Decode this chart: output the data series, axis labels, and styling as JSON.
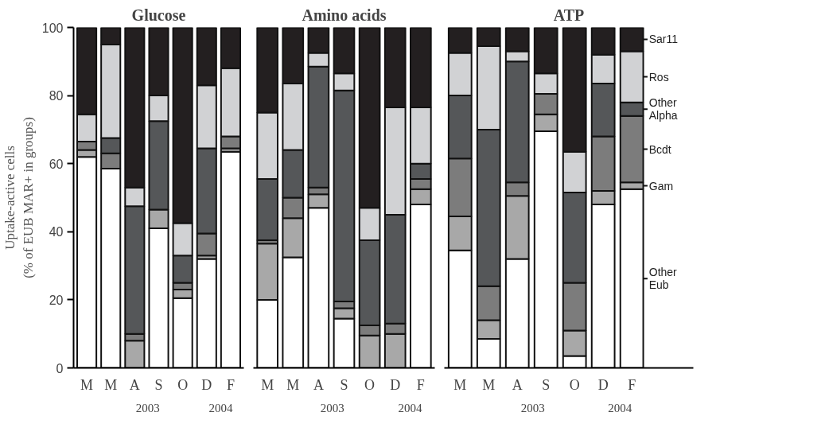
{
  "chart_data": [
    {
      "type": "bar",
      "stacked": true,
      "title": "Glucose",
      "ylabel": "Uptake-active cells\n(% of EUB MAR+ in groups)",
      "categories": [
        "M",
        "M",
        "A",
        "S",
        "O",
        "D",
        "F"
      ],
      "ylim": [
        0,
        100
      ],
      "yticks": [
        0,
        20,
        40,
        60,
        80,
        100
      ],
      "grid": false,
      "annotations": [
        "2003",
        "2004"
      ],
      "series": [
        {
          "color": "#ffffff",
          "values": [
            62,
            58.5,
            0,
            41,
            20.5,
            32,
            63.5
          ]
        },
        {
          "color": "#a8a8a8",
          "values": [
            2,
            0,
            8,
            5.5,
            2.5,
            1,
            1
          ]
        },
        {
          "color": "#7c7c7c",
          "values": [
            2.5,
            4.5,
            2,
            0,
            2,
            6.5,
            3.5
          ]
        },
        {
          "color": "#555759",
          "values": [
            0,
            4.5,
            37.5,
            26,
            8,
            25,
            0
          ]
        },
        {
          "color": "#d1d2d4",
          "values": [
            8,
            27.5,
            5.5,
            7.5,
            9.5,
            18.5,
            20
          ]
        },
        {
          "color": "#231f20",
          "values": [
            25.5,
            5,
            47,
            20,
            57.5,
            17,
            12
          ]
        }
      ]
    },
    {
      "type": "bar",
      "stacked": true,
      "title": "Amino acids",
      "categories": [
        "M",
        "M",
        "A",
        "S",
        "O",
        "D",
        "F"
      ],
      "ylim": [
        0,
        100
      ],
      "yticks": [
        0,
        20,
        40,
        60,
        80,
        100
      ],
      "tick_labels": "x",
      "grid": false,
      "annotations": [
        "2003",
        "2004"
      ],
      "series": [
        {
          "color": "#ffffff",
          "values": [
            20,
            32.5,
            47,
            14.5,
            0,
            0,
            48
          ]
        },
        {
          "color": "#a8a8a8",
          "values": [
            16.5,
            11.5,
            4,
            3,
            9.5,
            10,
            4.5
          ]
        },
        {
          "color": "#7c7c7c",
          "values": [
            1,
            6,
            2,
            2,
            3,
            3,
            3
          ]
        },
        {
          "color": "#555759",
          "values": [
            18,
            14,
            35.5,
            62,
            25,
            32,
            4.5
          ]
        },
        {
          "color": "#d1d2d4",
          "values": [
            19.5,
            19.5,
            4,
            5,
            9.5,
            31.5,
            16.5
          ]
        },
        {
          "color": "#231f20",
          "values": [
            25,
            16.5,
            7.5,
            13.5,
            53,
            23.5,
            23.5
          ]
        }
      ]
    },
    {
      "type": "bar",
      "stacked": true,
      "title": "ATP",
      "categories": [
        "M",
        "M",
        "A",
        "S",
        "O",
        "D",
        "F"
      ],
      "ylim": [
        0,
        100
      ],
      "yticks": [
        0,
        20,
        40,
        60,
        80,
        100
      ],
      "tick_labels": "x",
      "grid": false,
      "legend": "right",
      "annotations": [
        "2003",
        "2004"
      ],
      "series": [
        {
          "name": "Other Eub",
          "color": "#ffffff",
          "values": [
            34.5,
            8.5,
            32,
            69.5,
            3.5,
            48,
            52.5
          ]
        },
        {
          "name": "Gam",
          "color": "#a8a8a8",
          "values": [
            10,
            5.5,
            18.5,
            5,
            7.5,
            4,
            2
          ]
        },
        {
          "name": "Bcdt",
          "color": "#7c7c7c",
          "values": [
            17,
            10,
            4,
            6,
            14,
            16,
            19.5
          ]
        },
        {
          "name": "Other Alpha",
          "color": "#555759",
          "values": [
            18.5,
            46,
            35.5,
            0,
            26.5,
            15.5,
            4
          ]
        },
        {
          "name": "Ros",
          "color": "#d1d2d4",
          "values": [
            12.5,
            24.5,
            3,
            6,
            12,
            8.5,
            15
          ]
        },
        {
          "name": "Sar11",
          "color": "#231f20",
          "values": [
            7.5,
            5.5,
            7,
            13.5,
            36.5,
            8,
            7
          ]
        }
      ]
    }
  ]
}
